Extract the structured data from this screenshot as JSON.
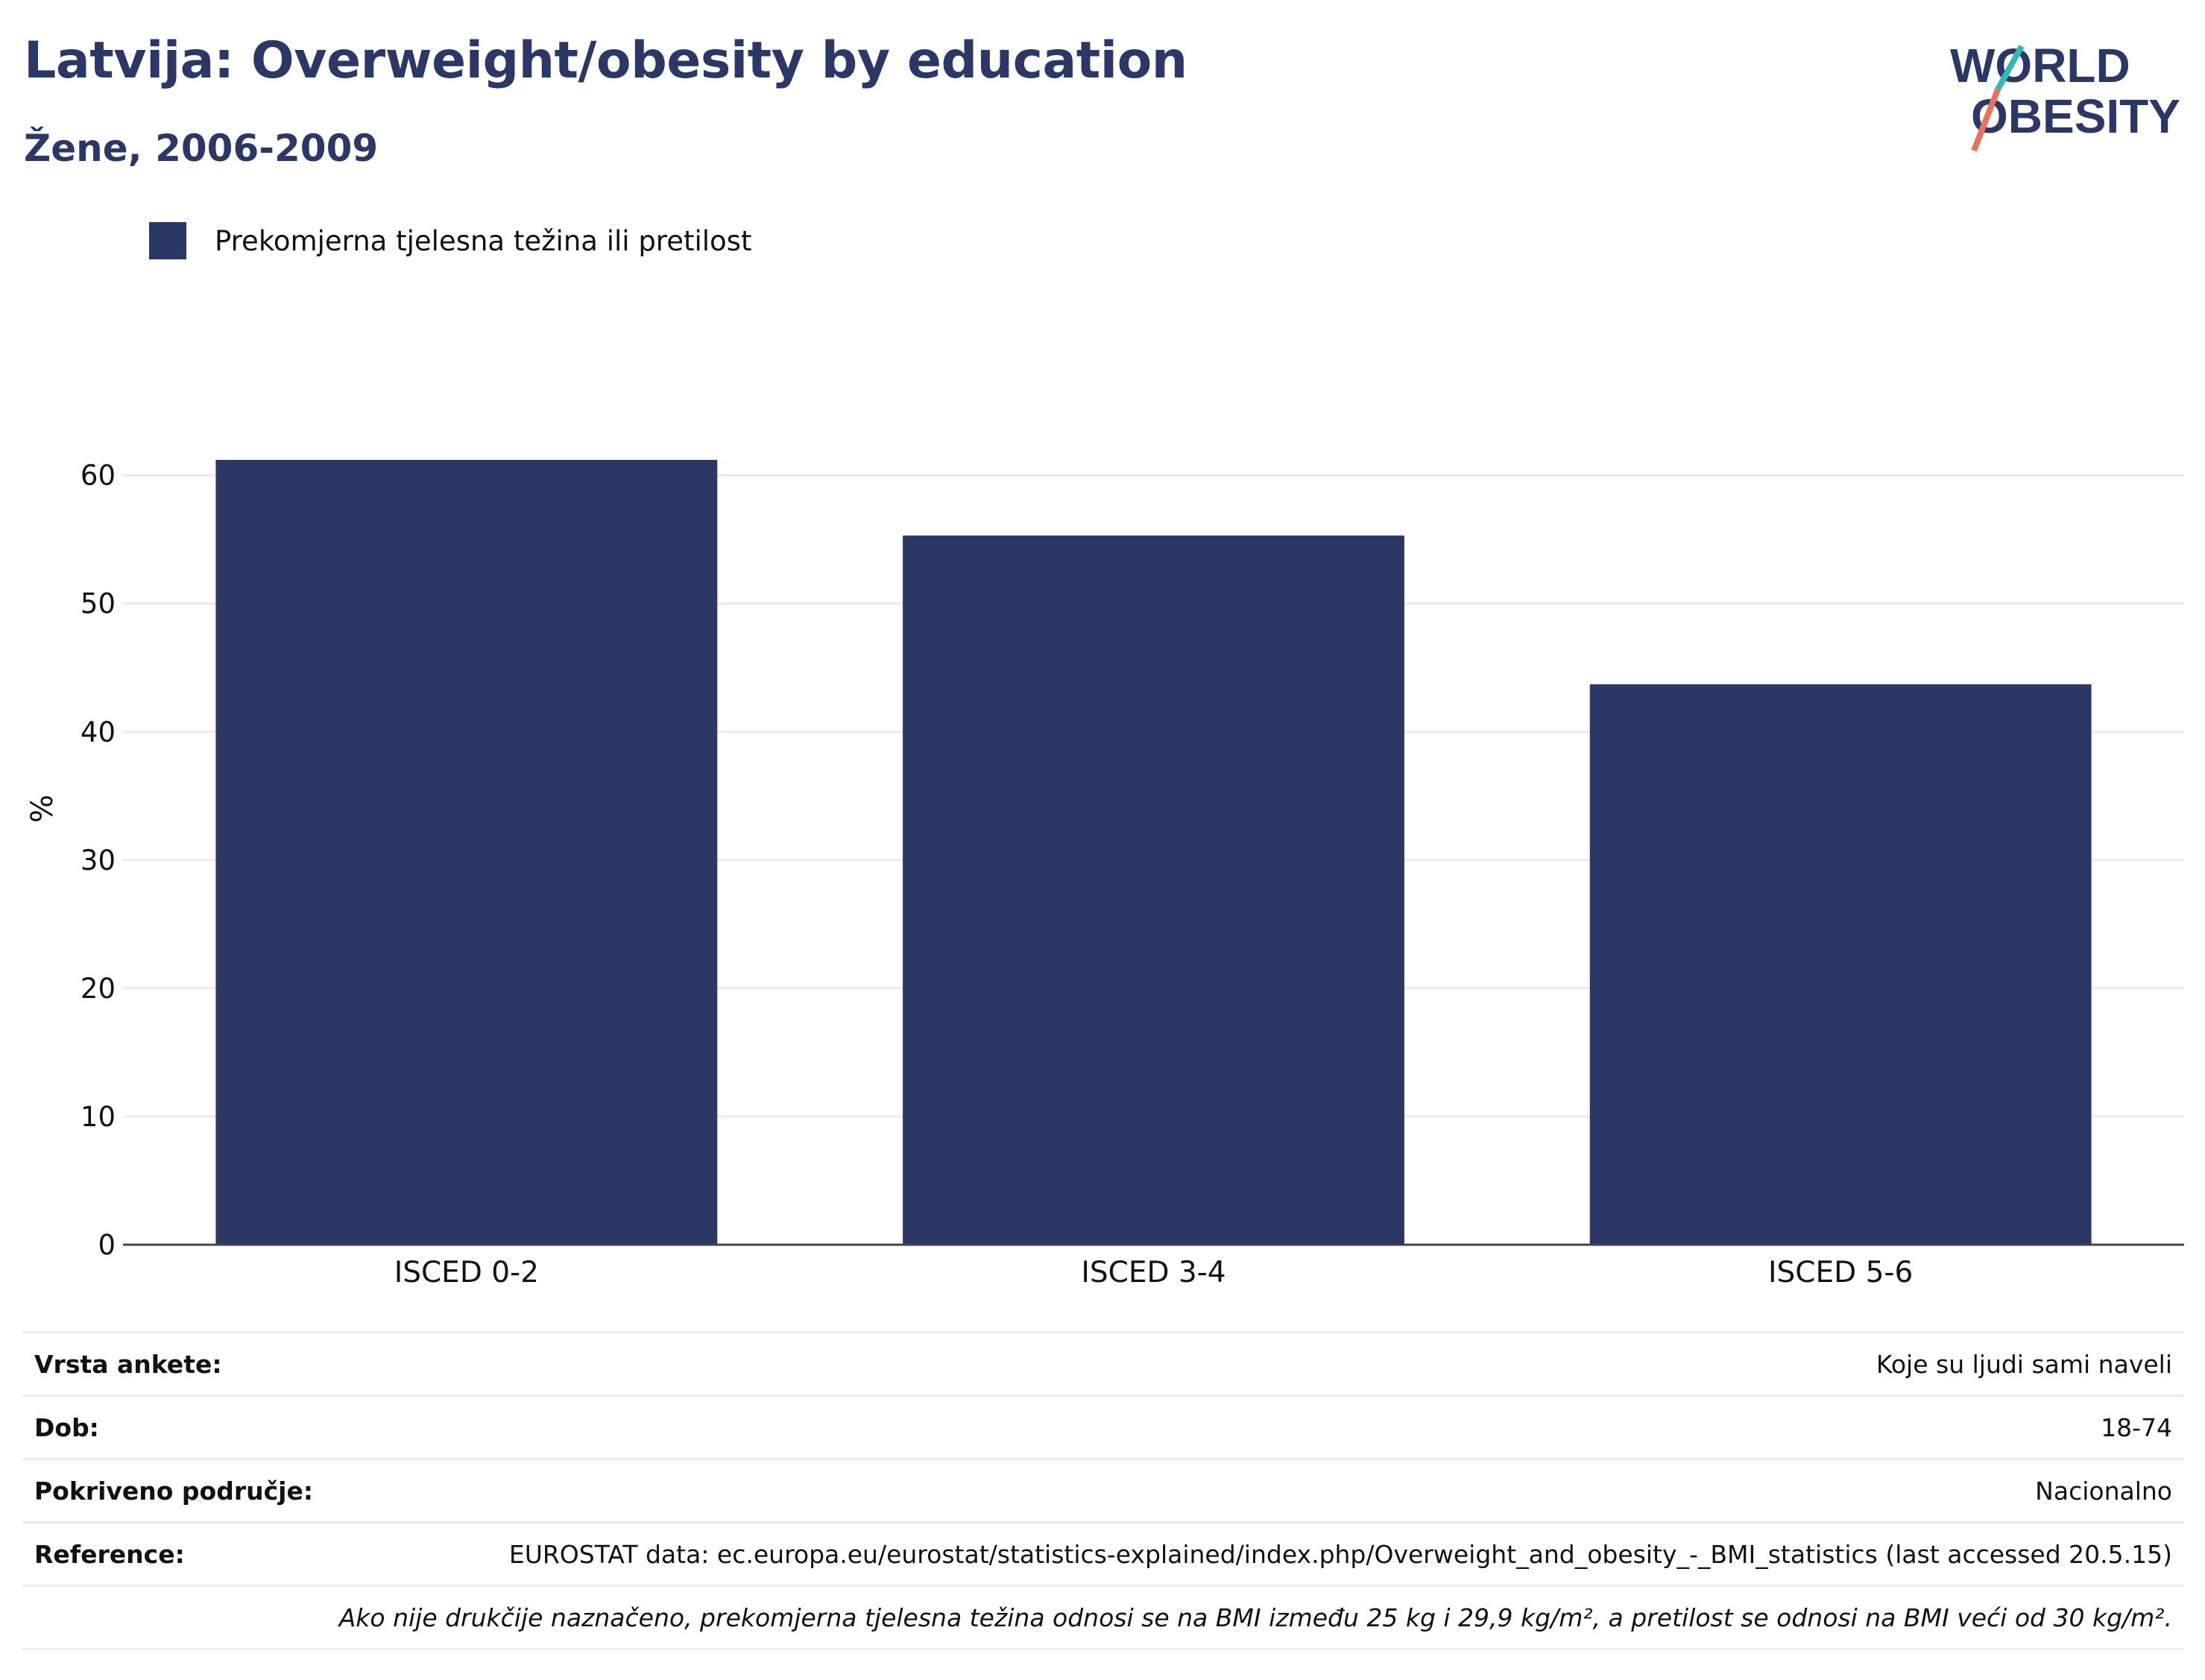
{
  "header": {
    "title": "Latvija: Overweight/obesity by education",
    "subtitle": "Žene, 2006-2009"
  },
  "logo": {
    "line1": "WORLD",
    "line2": "OBESITY"
  },
  "colors": {
    "bar": "#2b3765",
    "title": "#2b3765",
    "logo_teal": "#35b6b4",
    "logo_coral": "#e8705e"
  },
  "chart_data": {
    "type": "bar",
    "title": "Latvija: Overweight/obesity by education",
    "categories": [
      "ISCED 0-2",
      "ISCED 3-4",
      "ISCED 5-6"
    ],
    "series": [
      {
        "name": "Prekomjerna tjelesna težina ili pretilost",
        "values": [
          61.2,
          55.3,
          43.7
        ]
      }
    ],
    "ylabel": "%",
    "xlabel": "",
    "ylim": [
      0,
      68
    ],
    "yticks": [
      0,
      10,
      20,
      30,
      40,
      50,
      60
    ],
    "grid": true,
    "legend_position": "top-left"
  },
  "info": {
    "survey_type_label": "Vrsta ankete:",
    "survey_type_value": "Koje su ljudi sami naveli",
    "age_label": "Dob:",
    "age_value": "18-74",
    "coverage_label": "Pokriveno područje:",
    "coverage_value": "Nacionalno",
    "reference_label": "Reference:",
    "reference_value": "EUROSTAT data: ec.europa.eu/eurostat/statistics-explained/index.php/Overweight_and_obesity_-_BMI_statistics (last accessed 20.5.15)",
    "note": "Ako nije drukčije naznačeno, prekomjerna tjelesna težina odnosi se na BMI između 25 kg i 29,9 kg/m², a pretilost se odnosi na BMI veći od 30 kg/m²."
  }
}
